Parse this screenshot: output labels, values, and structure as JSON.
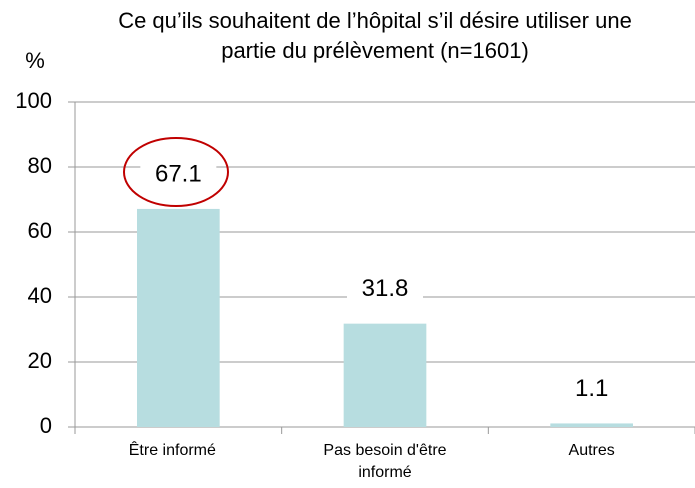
{
  "chart_data": {
    "type": "bar",
    "title": "Ce qu’ils souhaitent de l’hôpital s’il désire utiliser une partie du prélèvement (n=1601)",
    "y_label": "%",
    "categories": [
      "Être informé",
      "Pas besoin d'être informé",
      "Autres"
    ],
    "values": [
      67.1,
      31.8,
      1.1
    ],
    "color": "#b7dde0",
    "ylim": [
      0,
      100
    ],
    "yticks": [
      0,
      20,
      40,
      60,
      80,
      100
    ],
    "grid": true
  }
}
